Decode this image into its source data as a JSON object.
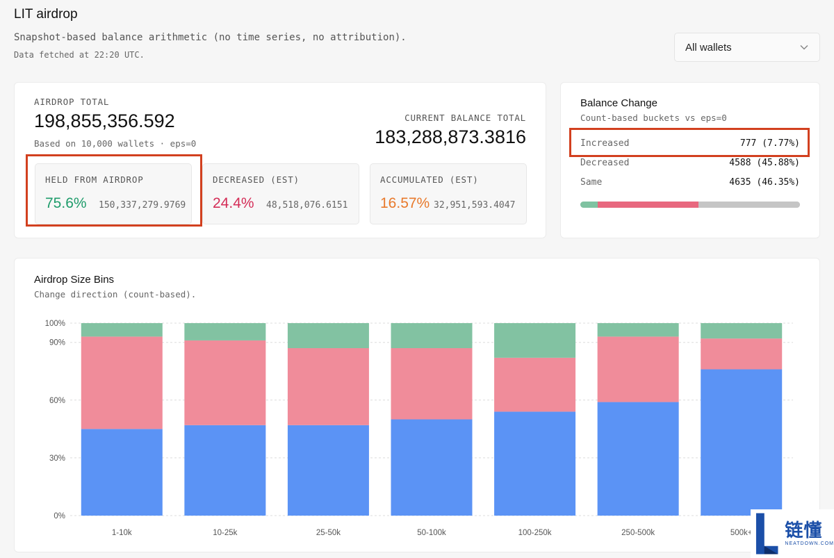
{
  "header": {
    "title": "LIT airdrop",
    "subtitle": "Snapshot-based balance arithmetic (no time series, no attribution).",
    "fetched": "Data fetched at 22:20 UTC."
  },
  "wallet_filter": {
    "selected": "All wallets",
    "icon": "chevron-down-icon"
  },
  "totals": {
    "airdrop_label": "AIRDROP TOTAL",
    "airdrop_value": "198,855,356.592",
    "airdrop_note": "Based on 10,000 wallets · eps=0",
    "current_label": "CURRENT BALANCE TOTAL",
    "current_value": "183,288,873.3816",
    "stats": [
      {
        "label": "HELD FROM AIRDROP",
        "pct": "75.6%",
        "amount": "150,337,279.9769",
        "color": "#1f9c6b"
      },
      {
        "label": "DECREASED (EST)",
        "pct": "24.4%",
        "amount": "48,518,076.6151",
        "color": "#d42d57"
      },
      {
        "label": "ACCUMULATED (EST)",
        "pct": "16.57%",
        "amount": "32,951,593.4047",
        "color": "#e8792b"
      }
    ]
  },
  "balance_change": {
    "title": "Balance Change",
    "subtitle": "Count-based buckets vs eps=0",
    "rows": [
      {
        "label": "Increased",
        "value": "777 (7.77%)",
        "share": 0.0777,
        "color": "#7fc2a1"
      },
      {
        "label": "Decreased",
        "value": "4588 (45.88%)",
        "share": 0.4588,
        "color": "#e8687f"
      },
      {
        "label": "Same",
        "value": "4635 (46.35%)",
        "share": 0.4635,
        "color": "#c5c5c5"
      }
    ]
  },
  "bins": {
    "title": "Airdrop Size Bins",
    "subtitle": "Change direction (count-based)."
  },
  "chart_data": {
    "type": "bar",
    "stacked": true,
    "categories": [
      "1-10k",
      "10-25k",
      "25-50k",
      "50-100k",
      "100-250k",
      "250-500k",
      "500k+"
    ],
    "series": [
      {
        "values": [
          45,
          47,
          47,
          50,
          54,
          59,
          76
        ],
        "color": "#5b93f5"
      },
      {
        "values": [
          48,
          44,
          40,
          37,
          28,
          34,
          16
        ],
        "color": "#f08c9a"
      },
      {
        "values": [
          7,
          9,
          13,
          13,
          18,
          7,
          8
        ],
        "color": "#82c2a2"
      }
    ],
    "y_ticks": [
      "0%",
      "30%",
      "60%",
      "90%",
      "100%"
    ],
    "y_tick_values": [
      0,
      30,
      60,
      90,
      100
    ],
    "ylim": [
      0,
      100
    ],
    "grid": true
  },
  "watermark": {
    "cn": "链懂",
    "en": "NEATDOWN.COM"
  }
}
